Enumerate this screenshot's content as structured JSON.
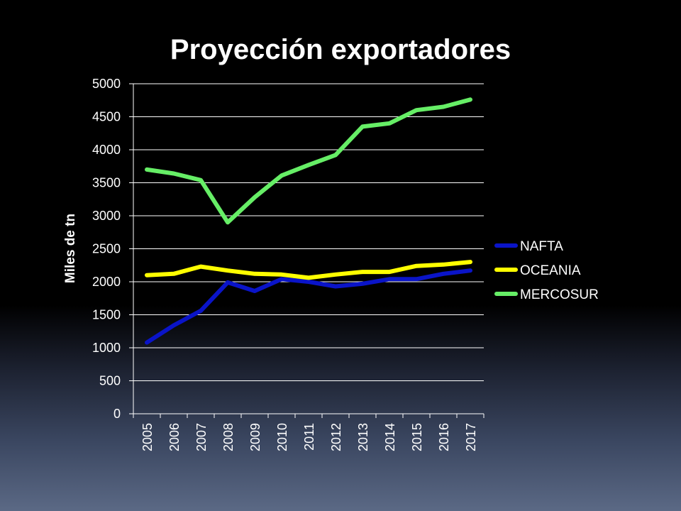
{
  "chart_data": {
    "type": "line",
    "title": "Proyección exportadores",
    "xlabel": "",
    "ylabel": "Miles de tn",
    "categories": [
      "2005",
      "2006",
      "2007",
      "2008",
      "2009",
      "2010",
      "2011",
      "2012",
      "2013",
      "2014",
      "2015",
      "2016",
      "2017"
    ],
    "ylim": [
      0,
      5000
    ],
    "yticks": [
      0,
      500,
      1000,
      1500,
      2000,
      2500,
      3000,
      3500,
      4000,
      4500,
      5000
    ],
    "grid": true,
    "legend_position": "right",
    "series": [
      {
        "name": "NAFTA",
        "color": "#0a14c8",
        "values": [
          1080,
          1340,
          1560,
          1990,
          1860,
          2040,
          2000,
          1930,
          1970,
          2040,
          2040,
          2120,
          2170
        ]
      },
      {
        "name": "OCEANIA",
        "color": "#ffff00",
        "values": [
          2100,
          2120,
          2230,
          2170,
          2120,
          2110,
          2060,
          2110,
          2150,
          2150,
          2240,
          2260,
          2300
        ]
      },
      {
        "name": "MERCOSUR",
        "color": "#66ee66",
        "values": [
          3700,
          3640,
          3540,
          2900,
          3280,
          3610,
          3770,
          3920,
          4350,
          4400,
          4600,
          4650,
          4760
        ]
      }
    ]
  }
}
